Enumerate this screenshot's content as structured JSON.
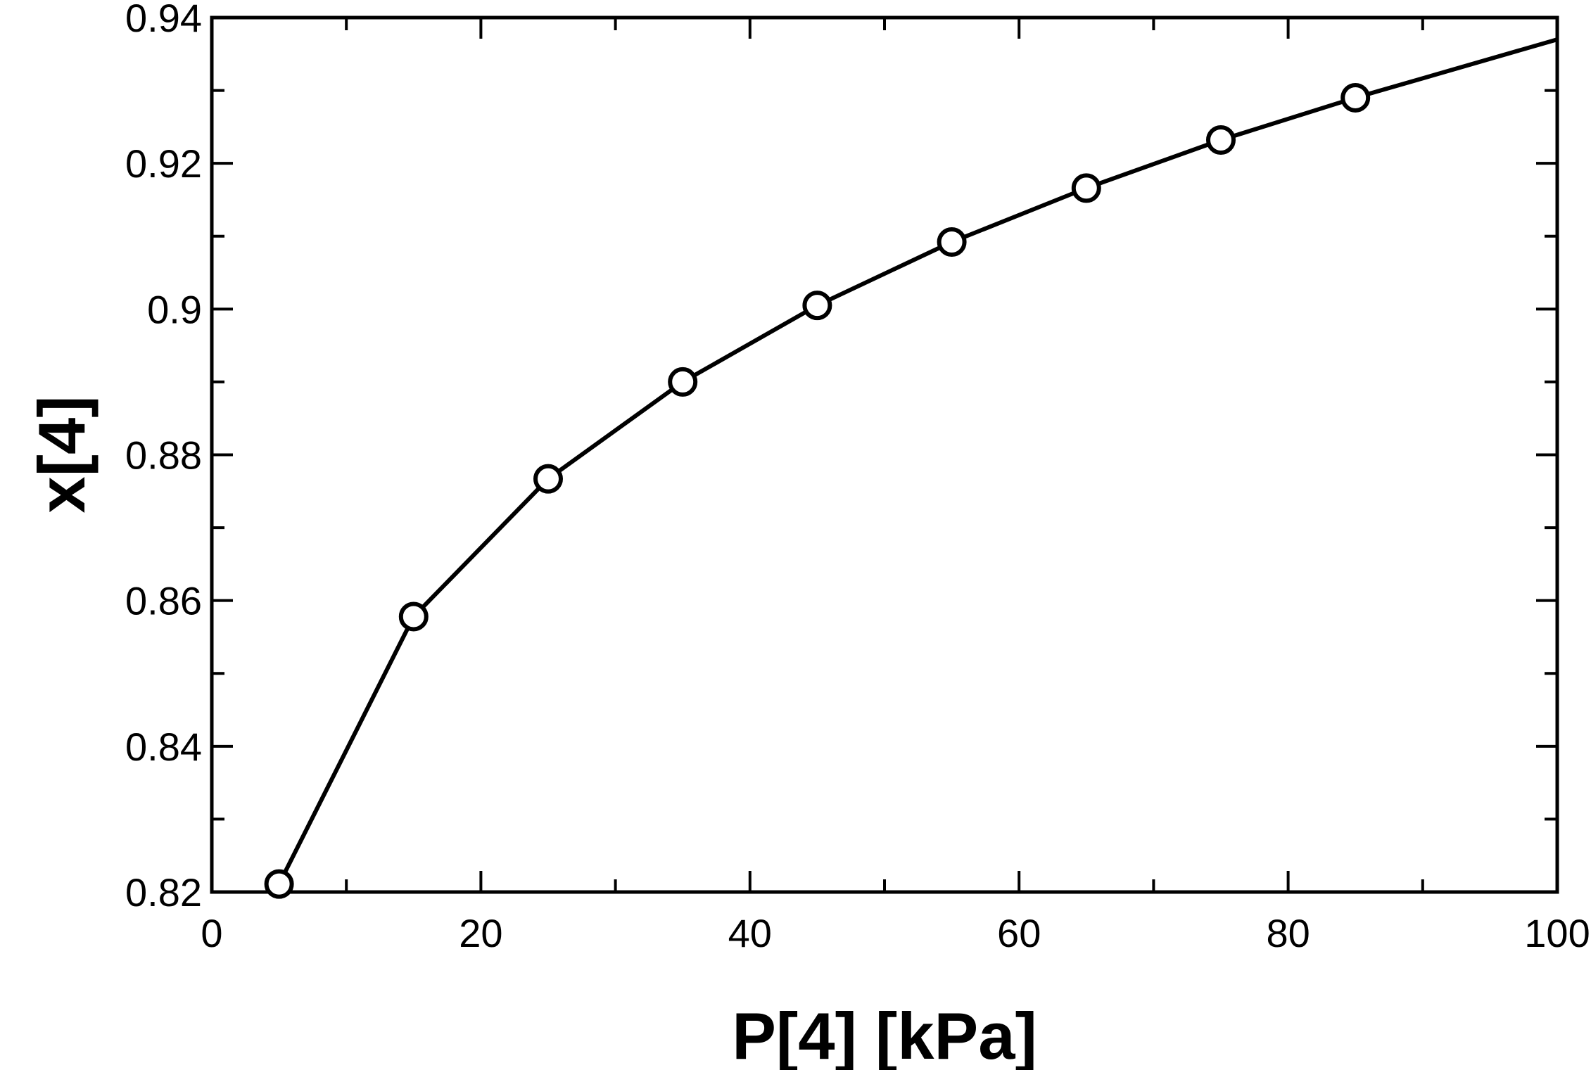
{
  "chart_data": {
    "type": "line",
    "title": "",
    "xlabel": "P[4]  [kPa]",
    "ylabel": "x[4]",
    "xlim": [
      0,
      100
    ],
    "ylim": [
      0.82,
      0.94
    ],
    "x_ticks": [
      {
        "value": 0,
        "label": "0"
      },
      {
        "value": 20,
        "label": "20"
      },
      {
        "value": 40,
        "label": "40"
      },
      {
        "value": 60,
        "label": "60"
      },
      {
        "value": 80,
        "label": "80"
      },
      {
        "value": 100,
        "label": "100"
      }
    ],
    "y_ticks": [
      {
        "value": 0.82,
        "label": "0.82"
      },
      {
        "value": 0.84,
        "label": "0.84"
      },
      {
        "value": 0.86,
        "label": "0.86"
      },
      {
        "value": 0.88,
        "label": "0.88"
      },
      {
        "value": 0.9,
        "label": "0.9"
      },
      {
        "value": 0.92,
        "label": "0.92"
      },
      {
        "value": 0.94,
        "label": "0.94"
      }
    ],
    "x_minor_step": 10,
    "y_minor_step": 0.01,
    "grid": false,
    "legend": "none",
    "series": [
      {
        "line": [
          {
            "x": 5,
            "y": 0.8211
          },
          {
            "x": 15,
            "y": 0.8578
          },
          {
            "x": 25,
            "y": 0.8767
          },
          {
            "x": 35,
            "y": 0.89
          },
          {
            "x": 45,
            "y": 0.9005
          },
          {
            "x": 55,
            "y": 0.9092
          },
          {
            "x": 65,
            "y": 0.9166
          },
          {
            "x": 75,
            "y": 0.9232
          },
          {
            "x": 85,
            "y": 0.929
          },
          {
            "x": 100,
            "y": 0.937
          }
        ],
        "markers": [
          {
            "x": 5,
            "y": 0.8211
          },
          {
            "x": 15,
            "y": 0.8578
          },
          {
            "x": 25,
            "y": 0.8767
          },
          {
            "x": 35,
            "y": 0.89
          },
          {
            "x": 45,
            "y": 0.9005
          },
          {
            "x": 55,
            "y": 0.9092
          },
          {
            "x": 65,
            "y": 0.9166
          },
          {
            "x": 75,
            "y": 0.9232
          },
          {
            "x": 85,
            "y": 0.929
          }
        ],
        "marker": "open-circle",
        "color": "#000000"
      }
    ]
  }
}
